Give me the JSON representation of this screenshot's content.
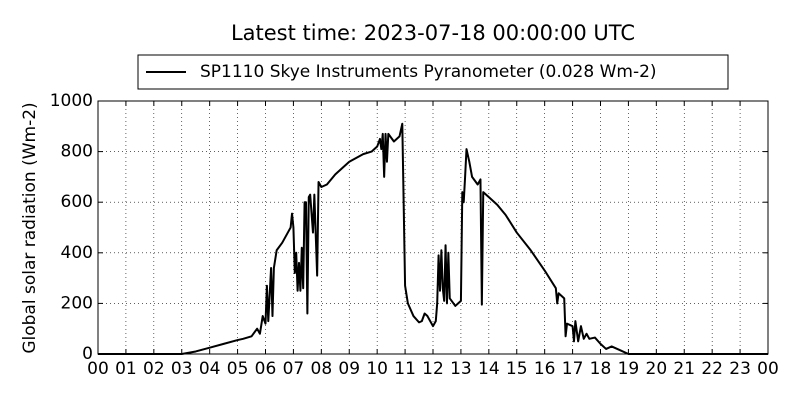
{
  "chart_data": {
    "type": "line",
    "title": "Latest time: 2023-07-18 00:00:00 UTC",
    "y_label": "Global solar radiation (Wm-2)",
    "legend": "upper center",
    "grid": true,
    "xlim": [
      0,
      24
    ],
    "ylim": [
      0,
      1000
    ],
    "yticks": [
      0,
      200,
      400,
      600,
      800,
      1000
    ],
    "xticks": [
      {
        "value": 0,
        "label": "00"
      },
      {
        "value": 1,
        "label": "01"
      },
      {
        "value": 2,
        "label": "02"
      },
      {
        "value": 3,
        "label": "03"
      },
      {
        "value": 4,
        "label": "04"
      },
      {
        "value": 5,
        "label": "05"
      },
      {
        "value": 6,
        "label": "06"
      },
      {
        "value": 7,
        "label": "07"
      },
      {
        "value": 8,
        "label": "08"
      },
      {
        "value": 9,
        "label": "09"
      },
      {
        "value": 10,
        "label": "10"
      },
      {
        "value": 11,
        "label": "11"
      },
      {
        "value": 12,
        "label": "12"
      },
      {
        "value": 13,
        "label": "13"
      },
      {
        "value": 14,
        "label": "14"
      },
      {
        "value": 15,
        "label": "15"
      },
      {
        "value": 16,
        "label": "16"
      },
      {
        "value": 17,
        "label": "17"
      },
      {
        "value": 18,
        "label": "18"
      },
      {
        "value": 19,
        "label": "19"
      },
      {
        "value": 20,
        "label": "20"
      },
      {
        "value": 21,
        "label": "21"
      },
      {
        "value": 22,
        "label": "22"
      },
      {
        "value": 23,
        "label": "23"
      },
      {
        "value": 24,
        "label": "00"
      }
    ],
    "x": [
      0,
      3,
      3.5,
      4,
      4.5,
      5,
      5.2,
      5.5,
      5.7,
      5.8,
      5.9,
      6,
      6.05,
      6.1,
      6.2,
      6.25,
      6.3,
      6.4,
      6.6,
      6.8,
      6.9,
      6.95,
      7,
      7.05,
      7.1,
      7.15,
      7.2,
      7.25,
      7.3,
      7.35,
      7.4,
      7.45,
      7.5,
      7.55,
      7.6,
      7.7,
      7.75,
      7.85,
      7.9,
      8,
      8.2,
      8.5,
      9,
      9.5,
      9.8,
      10,
      10.1,
      10.15,
      10.2,
      10.25,
      10.3,
      10.35,
      10.4,
      10.6,
      10.8,
      10.9,
      11,
      11.1,
      11.3,
      11.5,
      11.6,
      11.7,
      11.8,
      11.9,
      12,
      12.1,
      12.15,
      12.2,
      12.25,
      12.3,
      12.35,
      12.4,
      12.45,
      12.5,
      12.55,
      12.6,
      12.8,
      12.9,
      13,
      13.05,
      13.1,
      13.15,
      13.2,
      13.3,
      13.4,
      13.6,
      13.7,
      13.75,
      13.8,
      14,
      14.3,
      14.6,
      15,
      15.5,
      16,
      16.4,
      16.45,
      16.5,
      16.7,
      16.75,
      16.8,
      17,
      17.05,
      17.1,
      17.2,
      17.3,
      17.4,
      17.5,
      17.6,
      17.8,
      18,
      18.2,
      18.4,
      18.7,
      19,
      24
    ],
    "series": [
      {
        "name": "SP1110 Skye Instruments Pyranometer (0.028 Wm-2)",
        "color": "#000000",
        "values": [
          0,
          0,
          10,
          25,
          40,
          55,
          60,
          70,
          100,
          80,
          150,
          120,
          270,
          130,
          340,
          150,
          340,
          410,
          440,
          480,
          500,
          555,
          500,
          320,
          400,
          250,
          360,
          250,
          420,
          260,
          600,
          600,
          160,
          620,
          630,
          480,
          630,
          310,
          680,
          660,
          670,
          710,
          760,
          790,
          800,
          820,
          850,
          810,
          870,
          700,
          870,
          760,
          870,
          840,
          860,
          910,
          270,
          200,
          150,
          125,
          130,
          160,
          150,
          130,
          110,
          130,
          200,
          390,
          250,
          410,
          260,
          210,
          430,
          200,
          400,
          220,
          190,
          200,
          210,
          640,
          600,
          700,
          810,
          760,
          700,
          670,
          690,
          195,
          640,
          620,
          590,
          550,
          480,
          410,
          330,
          260,
          200,
          240,
          220,
          70,
          120,
          110,
          50,
          130,
          50,
          110,
          60,
          80,
          60,
          65,
          40,
          20,
          30,
          15,
          0,
          0
        ]
      }
    ]
  }
}
